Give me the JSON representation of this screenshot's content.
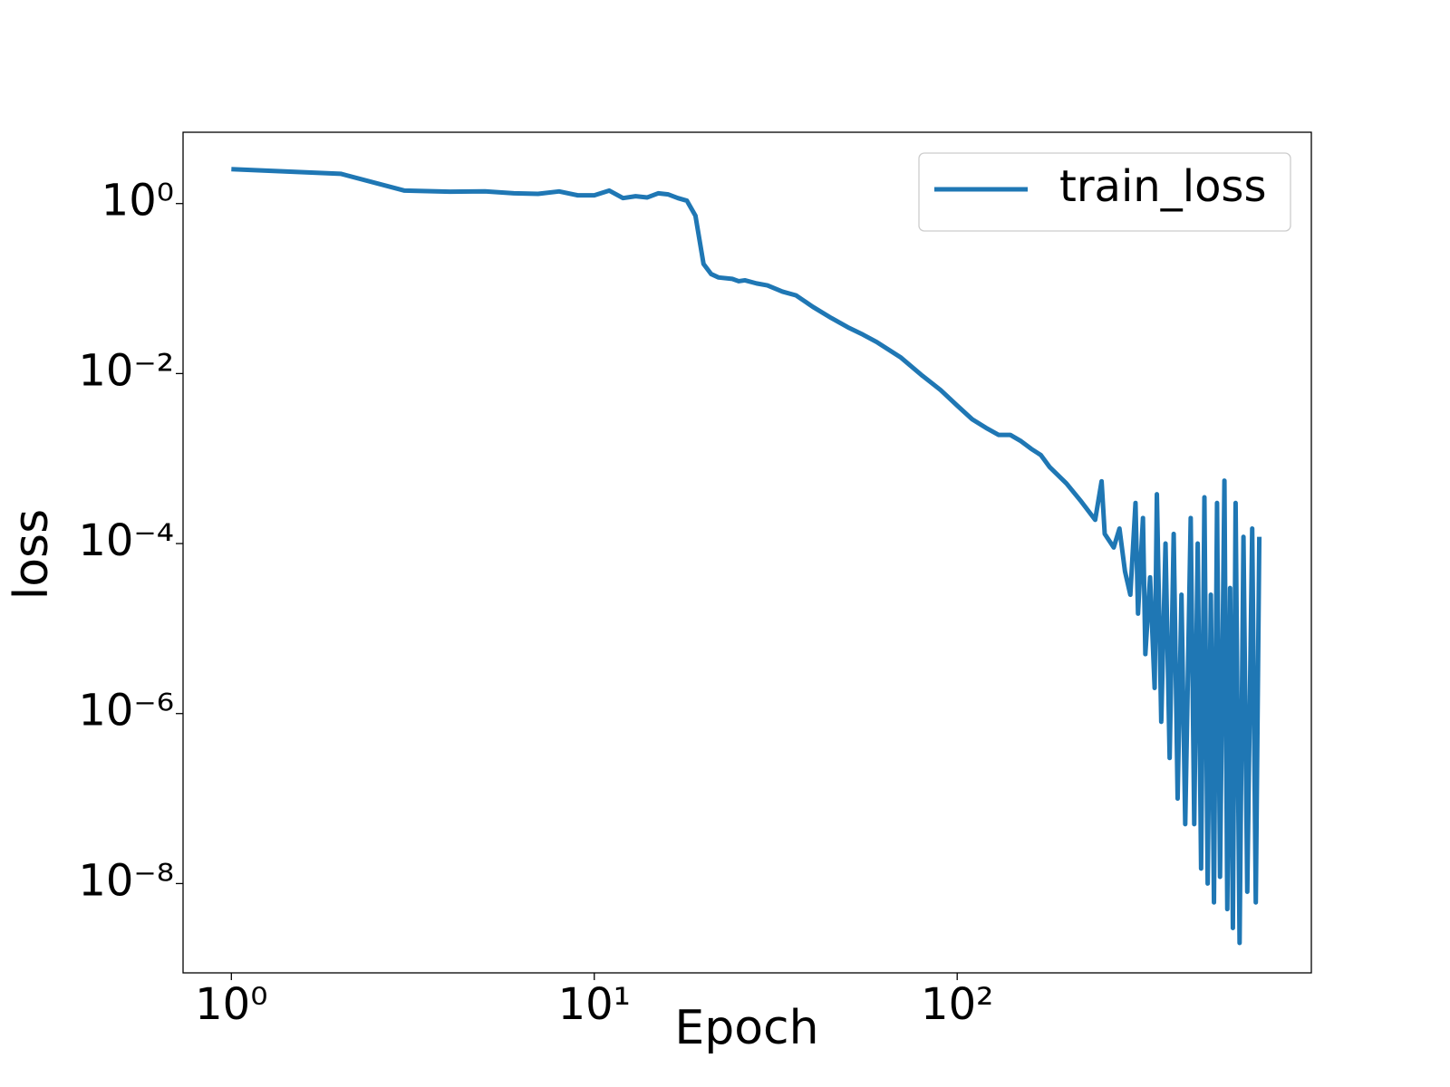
{
  "chart_data": {
    "type": "line",
    "xlabel": "Epoch",
    "ylabel": "loss",
    "xscale": "log",
    "yscale": "log",
    "legend": "upper right",
    "x": [
      1,
      2,
      3,
      4,
      5,
      6,
      7,
      8,
      9,
      10,
      11,
      12,
      13,
      14,
      15,
      16,
      17,
      18,
      19,
      20,
      21,
      22,
      24,
      25,
      26,
      28,
      30,
      33,
      36,
      40,
      45,
      50,
      55,
      60,
      70,
      80,
      90,
      100,
      110,
      120,
      130,
      140,
      150,
      160,
      170,
      180,
      200,
      220,
      240,
      250,
      255,
      270,
      280,
      290,
      300,
      310,
      315,
      325,
      330,
      340,
      350,
      355,
      365,
      375,
      385,
      395,
      405,
      415,
      425,
      440,
      450,
      460,
      470,
      480,
      490,
      500,
      510,
      520,
      530,
      545,
      555,
      565,
      575,
      585,
      600,
      615,
      630,
      650,
      665,
      680
    ],
    "series": [
      {
        "name": "train_loss",
        "color": "#1f77b4",
        "values": [
          2.54,
          2.24,
          1.42,
          1.38,
          1.39,
          1.32,
          1.3,
          1.39,
          1.25,
          1.25,
          1.42,
          1.16,
          1.22,
          1.18,
          1.32,
          1.28,
          1.16,
          1.08,
          0.72,
          0.195,
          0.148,
          0.135,
          0.13,
          0.122,
          0.125,
          0.115,
          0.109,
          0.092,
          0.083,
          0.061,
          0.045,
          0.035,
          0.0287,
          0.0235,
          0.0154,
          0.0095,
          0.0064,
          0.0042,
          0.0029,
          0.0023,
          0.0019,
          0.0019,
          0.0016,
          0.0013,
          0.0011,
          0.00079,
          0.00051,
          0.00031,
          0.00019,
          0.00054,
          0.00013,
          9e-05,
          0.00015,
          4.7e-05,
          2.5e-05,
          0.0003,
          1.5e-05,
          0.0002,
          5e-06,
          4e-05,
          2e-06,
          0.00038,
          8e-07,
          0.0001,
          3e-07,
          0.00013,
          1e-07,
          2.5e-05,
          5e-08,
          0.0002,
          5e-08,
          0.0001,
          1.5e-08,
          0.00035,
          1e-08,
          2.5e-05,
          6e-09,
          0.0003,
          1.2e-08,
          0.00055,
          5e-09,
          3e-05,
          3e-09,
          0.0003,
          2e-09,
          0.00012,
          8e-09,
          0.00015,
          6e-09,
          0.00012
        ]
      }
    ],
    "xlim": [
      0.736,
      946
    ],
    "ylim": [
      8.9e-10,
      6.9
    ],
    "xticks": [
      {
        "value": 1,
        "label": "10⁰"
      },
      {
        "value": 10,
        "label": "10¹"
      },
      {
        "value": 100,
        "label": "10²"
      }
    ],
    "yticks": [
      {
        "value": 1e-08,
        "label": "10⁻⁸"
      },
      {
        "value": 1e-06,
        "label": "10⁻⁶"
      },
      {
        "value": 0.0001,
        "label": "10⁻⁴"
      },
      {
        "value": 0.01,
        "label": "10⁻²"
      },
      {
        "value": 1,
        "label": "10⁰"
      }
    ]
  }
}
